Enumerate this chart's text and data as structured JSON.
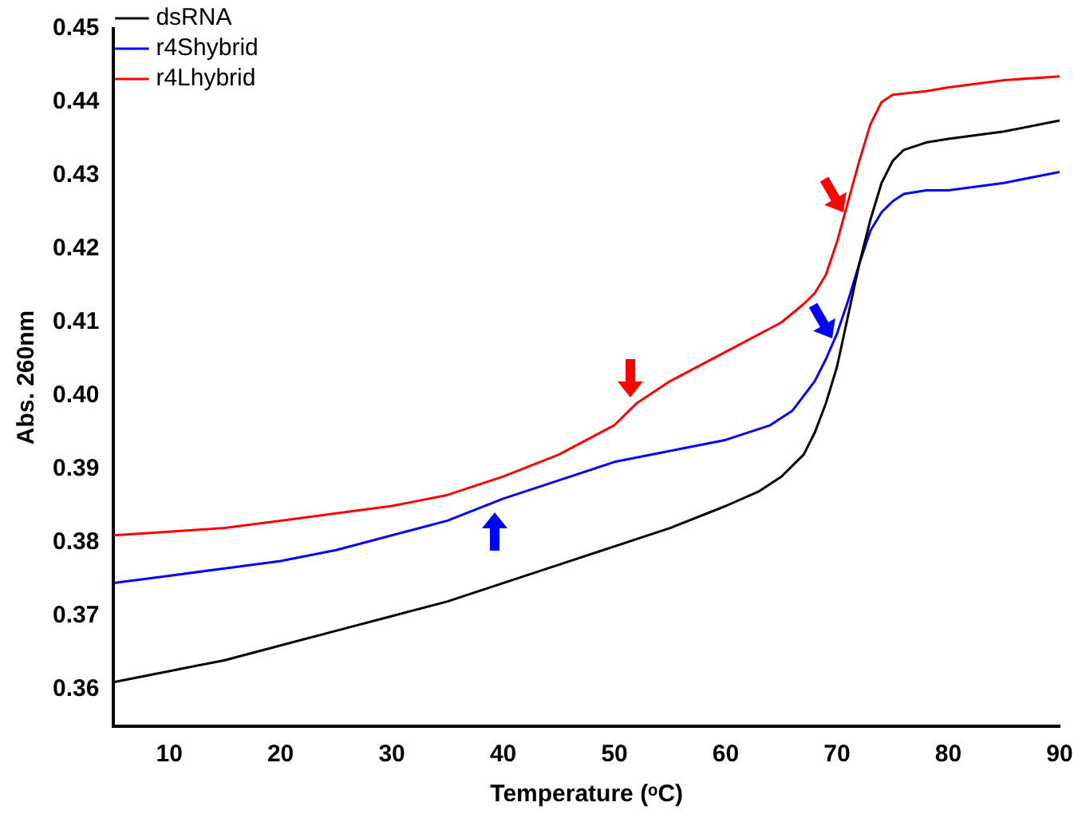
{
  "chart_data": {
    "type": "line",
    "xlabel": "Temperature (ᵒC)",
    "ylabel": "Abs. 260nm",
    "xlim": [
      5,
      90
    ],
    "xticks": [
      10,
      20,
      30,
      40,
      50,
      60,
      70,
      80,
      90
    ],
    "ylim": [
      0.355,
      0.45
    ],
    "yticks": [
      0.36,
      0.37,
      0.38,
      0.39,
      {
        "value": 0.4,
        "label": "0.40"
      },
      0.41,
      0.42,
      0.43,
      0.44,
      0.45
    ],
    "grid": false,
    "legend": "top left",
    "marker": "none",
    "line_style": "solid",
    "series": [
      {
        "name": "dsRNA",
        "color": "#000000",
        "x": [
          5,
          10,
          15,
          20,
          25,
          30,
          35,
          40,
          45,
          50,
          55,
          60,
          63,
          65,
          67,
          68,
          69,
          70,
          71,
          72,
          73,
          74,
          75,
          76,
          78,
          80,
          85,
          90
        ],
        "values": [
          0.361,
          0.3625,
          0.364,
          0.366,
          0.368,
          0.37,
          0.372,
          0.3745,
          0.377,
          0.3795,
          0.382,
          0.385,
          0.387,
          0.389,
          0.392,
          0.395,
          0.399,
          0.404,
          0.411,
          0.418,
          0.424,
          0.429,
          0.432,
          0.4335,
          0.4345,
          0.435,
          0.436,
          0.4375
        ]
      },
      {
        "name": "r4Shybrid",
        "color": "#0000ff",
        "x": [
          5,
          10,
          15,
          20,
          25,
          30,
          35,
          40,
          45,
          50,
          55,
          60,
          64,
          66,
          68,
          69,
          70,
          71,
          72,
          73,
          74,
          75,
          76,
          78,
          80,
          85,
          90
        ],
        "values": [
          0.3745,
          0.3755,
          0.3765,
          0.3775,
          0.379,
          0.381,
          0.383,
          0.386,
          0.3885,
          0.391,
          0.3925,
          0.394,
          0.396,
          0.398,
          0.402,
          0.405,
          0.4085,
          0.413,
          0.418,
          0.4225,
          0.425,
          0.4265,
          0.4275,
          0.428,
          0.428,
          0.429,
          0.4305
        ]
      },
      {
        "name": "r4Lhybrid",
        "color": "#ff0000",
        "x": [
          5,
          10,
          15,
          20,
          25,
          30,
          35,
          40,
          45,
          50,
          52,
          55,
          60,
          65,
          67,
          68,
          69,
          70,
          71,
          72,
          73,
          74,
          75,
          78,
          80,
          85,
          90
        ],
        "values": [
          0.381,
          0.3815,
          0.382,
          0.383,
          0.384,
          0.385,
          0.3865,
          0.389,
          0.392,
          0.396,
          0.399,
          0.402,
          0.406,
          0.41,
          0.4125,
          0.414,
          0.4165,
          0.421,
          0.4265,
          0.432,
          0.437,
          0.44,
          0.441,
          0.4415,
          0.442,
          0.443,
          0.4435
        ]
      }
    ]
  }
}
